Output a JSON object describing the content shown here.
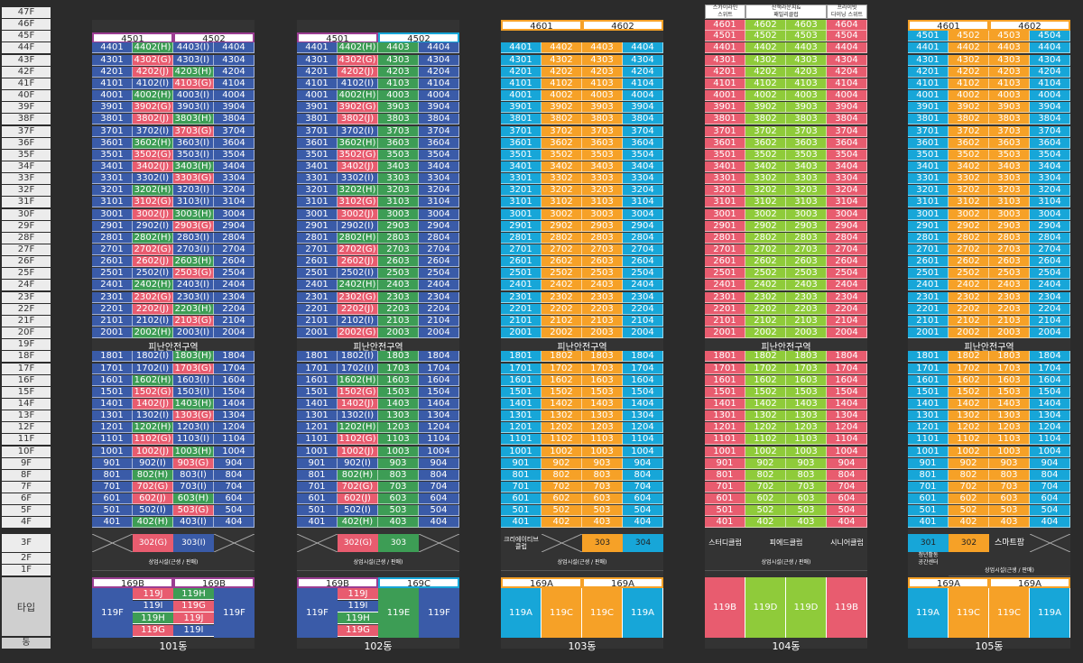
{
  "floor_labels": [
    "47F",
    "46F",
    "45F",
    "44F",
    "43F",
    "42F",
    "41F",
    "40F",
    "39F",
    "38F",
    "37F",
    "36F",
    "35F",
    "34F",
    "33F",
    "32F",
    "31F",
    "30F",
    "29F",
    "28F",
    "27F",
    "26F",
    "25F",
    "24F",
    "23F",
    "22F",
    "21F",
    "20F",
    "19F",
    "18F",
    "17F",
    "16F",
    "15F",
    "14F",
    "13F",
    "12F",
    "11F",
    "10F",
    "9F",
    "8F",
    "7F",
    "6F",
    "5F",
    "4F",
    "3F",
    "2F",
    "1F"
  ],
  "type_label": "타입",
  "dong_label": "동",
  "refuge_label": "피난안전구역",
  "commercial_label": "상업시설(근생 / 판매)",
  "colors": {
    "blue": "#3a5ba8",
    "pink": "#e85c6f",
    "green": "#3d9d55",
    "cyan": "#17a6d8",
    "orange": "#f6a127",
    "lime": "#8fcb3a",
    "purple": "#9b3d92",
    "white": "#ffffff"
  },
  "buildings": [
    {
      "name": "101동",
      "headers": [
        "4501",
        "4502"
      ],
      "header_color": "#9b3d92",
      "units": [
        [
          "4401",
          "4402(H)",
          "4403(I)",
          "4404"
        ],
        [
          "4301",
          "4302(G)",
          "4303(I)",
          "4304"
        ],
        [
          "4201",
          "4202(J)",
          "4203(H)",
          "4204"
        ],
        [
          "4101",
          "4102(I)",
          "4103(G)",
          "4104"
        ],
        [
          "4001",
          "4002(H)",
          "4003(I)",
          "4004"
        ],
        [
          "3901",
          "3902(G)",
          "3903(I)",
          "3904"
        ],
        [
          "3801",
          "3802(J)",
          "3803(H)",
          "3804"
        ],
        [
          "3701",
          "3702(I)",
          "3703(G)",
          "3704"
        ],
        [
          "3601",
          "3602(H)",
          "3603(I)",
          "3604"
        ],
        [
          "3501",
          "3502(G)",
          "3503(I)",
          "3504"
        ],
        [
          "3401",
          "3402(J)",
          "3403(H)",
          "3404"
        ],
        [
          "3301",
          "3302(I)",
          "3303(G)",
          "3304"
        ],
        [
          "3201",
          "3202(H)",
          "3203(I)",
          "3204"
        ],
        [
          "3101",
          "3102(G)",
          "3103(I)",
          "3104"
        ],
        [
          "3001",
          "3002(J)",
          "3003(H)",
          "3004"
        ],
        [
          "2901",
          "2902(I)",
          "2903(G)",
          "2904"
        ],
        [
          "2801",
          "2802(H)",
          "2803(I)",
          "2804"
        ],
        [
          "2701",
          "2702(G)",
          "2703(I)",
          "2704"
        ],
        [
          "2601",
          "2602(J)",
          "2603(H)",
          "2604"
        ],
        [
          "2501",
          "2502(I)",
          "2503(G)",
          "2504"
        ],
        [
          "2401",
          "2402(H)",
          "2403(I)",
          "2404"
        ],
        [
          "2301",
          "2302(G)",
          "2303(I)",
          "2304"
        ],
        [
          "2201",
          "2202(J)",
          "2203(H)",
          "2204"
        ],
        [
          "2101",
          "2102(I)",
          "2103(G)",
          "2104"
        ],
        [
          "2001",
          "2002(H)",
          "2003(I)",
          "2004"
        ],
        [
          "1801",
          "1802(I)",
          "1803(H)",
          "1804"
        ],
        [
          "1701",
          "1702(I)",
          "1703(G)",
          "1704"
        ],
        [
          "1601",
          "1602(H)",
          "1603(I)",
          "1604"
        ],
        [
          "1501",
          "1502(G)",
          "1503(I)",
          "1504"
        ],
        [
          "1401",
          "1402(J)",
          "1403(H)",
          "1404"
        ],
        [
          "1301",
          "1302(I)",
          "1303(G)",
          "1304"
        ],
        [
          "1201",
          "1202(H)",
          "1203(I)",
          "1204"
        ],
        [
          "1101",
          "1102(G)",
          "1103(I)",
          "1104"
        ],
        [
          "1001",
          "1002(J)",
          "1003(H)",
          "1004"
        ],
        [
          "901",
          "902(I)",
          "903(G)",
          "904"
        ],
        [
          "801",
          "802(H)",
          "803(I)",
          "804"
        ],
        [
          "701",
          "702(G)",
          "703(I)",
          "704"
        ],
        [
          "601",
          "602(J)",
          "603(H)",
          "604"
        ],
        [
          "501",
          "502(I)",
          "503(G)",
          "504"
        ],
        [
          "401",
          "402(H)",
          "403(I)",
          "404"
        ]
      ],
      "floor3": [
        "",
        "302(G)",
        "303(I)",
        ""
      ],
      "types_top": [
        "169B",
        "169B"
      ],
      "types": {
        "left": "119F",
        "mid": [
          "119J",
          "119H",
          "119I",
          "119G",
          "119H",
          "119J",
          "119G",
          "119I"
        ],
        "right": "119F"
      }
    },
    {
      "name": "102동",
      "headers": [
        "4501",
        "4502"
      ],
      "header_color": "#9b3d92",
      "units": [
        [
          "4401",
          "4402(H)",
          "4403",
          "4404"
        ],
        [
          "4301",
          "4302(G)",
          "4303",
          "4304"
        ],
        [
          "4201",
          "4202(J)",
          "4203",
          "4204"
        ],
        [
          "4101",
          "4102(I)",
          "4103",
          "4104"
        ],
        [
          "4001",
          "4002(H)",
          "4003",
          "4004"
        ],
        [
          "3901",
          "3902(G)",
          "3903",
          "3904"
        ],
        [
          "3801",
          "3802(J)",
          "3803",
          "3804"
        ],
        [
          "3701",
          "3702(I)",
          "3703",
          "3704"
        ],
        [
          "3601",
          "3602(H)",
          "3603",
          "3604"
        ],
        [
          "3501",
          "3502(G)",
          "3503",
          "3504"
        ],
        [
          "3401",
          "3402(J)",
          "3403",
          "3404"
        ],
        [
          "3301",
          "3302(I)",
          "3303",
          "3304"
        ],
        [
          "3201",
          "3202(H)",
          "3203",
          "3204"
        ],
        [
          "3101",
          "3102(G)",
          "3103",
          "3104"
        ],
        [
          "3001",
          "3002(J)",
          "3003",
          "3004"
        ],
        [
          "2901",
          "2902(I)",
          "2903",
          "2904"
        ],
        [
          "2801",
          "2802(H)",
          "2803",
          "2804"
        ],
        [
          "2701",
          "2702(G)",
          "2703",
          "2704"
        ],
        [
          "2601",
          "2602(J)",
          "2603",
          "2604"
        ],
        [
          "2501",
          "2502(I)",
          "2503",
          "2504"
        ],
        [
          "2401",
          "2402(H)",
          "2403",
          "2404"
        ],
        [
          "2301",
          "2302(G)",
          "2303",
          "2304"
        ],
        [
          "2201",
          "2202(J)",
          "2203",
          "2204"
        ],
        [
          "2101",
          "2102(I)",
          "2103",
          "2104"
        ],
        [
          "2001",
          "2002(G)",
          "2003",
          "2004"
        ],
        [
          "1801",
          "1802(I)",
          "1803",
          "1804"
        ],
        [
          "1701",
          "1702(I)",
          "1703",
          "1704"
        ],
        [
          "1601",
          "1602(H)",
          "1603",
          "1604"
        ],
        [
          "1501",
          "1502(G)",
          "1503",
          "1504"
        ],
        [
          "1401",
          "1402(J)",
          "1403",
          "1404"
        ],
        [
          "1301",
          "1302(I)",
          "1303",
          "1304"
        ],
        [
          "1201",
          "1202(H)",
          "1203",
          "1204"
        ],
        [
          "1101",
          "1102(G)",
          "1103",
          "1104"
        ],
        [
          "1001",
          "1002(J)",
          "1003",
          "1004"
        ],
        [
          "901",
          "902(I)",
          "903",
          "904"
        ],
        [
          "801",
          "802(H)",
          "803",
          "804"
        ],
        [
          "701",
          "702(G)",
          "703",
          "704"
        ],
        [
          "601",
          "602(J)",
          "603",
          "604"
        ],
        [
          "501",
          "502(I)",
          "503",
          "504"
        ],
        [
          "401",
          "402(H)",
          "403",
          "404"
        ]
      ],
      "floor3": [
        "",
        "302(G)",
        "303",
        ""
      ],
      "types_top": [
        "169B",
        "169C"
      ],
      "types": {
        "left": "119F",
        "mid": [
          "119J",
          "119I",
          "119H",
          "119G"
        ],
        "mid2": "119E",
        "right": "119F"
      }
    },
    {
      "name": "103동",
      "headers": [
        "4601",
        "4602"
      ],
      "header_color": "#f6a127",
      "units": "cyan_orange",
      "floor3": [
        "크리에이티브\n클럽",
        "",
        "303",
        "304"
      ],
      "types_top": [
        "169A",
        "169A"
      ],
      "types": [
        "119A",
        "119C",
        "119C",
        "119A"
      ]
    },
    {
      "name": "104동",
      "headers_small": [
        "스카이라인\n스위트",
        "산책라운지&\n패밀리클럽",
        "프라이빗\n다이닝 스위트"
      ],
      "units_top": [
        "4601",
        "4602",
        "4603",
        "4604"
      ],
      "floor3": [
        "스터디클럽",
        "피에드클럽",
        "시니어클럽"
      ],
      "types": [
        "119B",
        "119D",
        "119D",
        "119B"
      ]
    },
    {
      "name": "105동",
      "headers": [
        "4601",
        "4602"
      ],
      "header_color": "#f6a127",
      "floor3": [
        "301",
        "302",
        "스마트팜",
        ""
      ],
      "floor2_note": "청년활동\n공간센터",
      "types_top": [
        "169A",
        "169A"
      ],
      "types": [
        "119A",
        "119C",
        "119C",
        "119A"
      ]
    }
  ]
}
